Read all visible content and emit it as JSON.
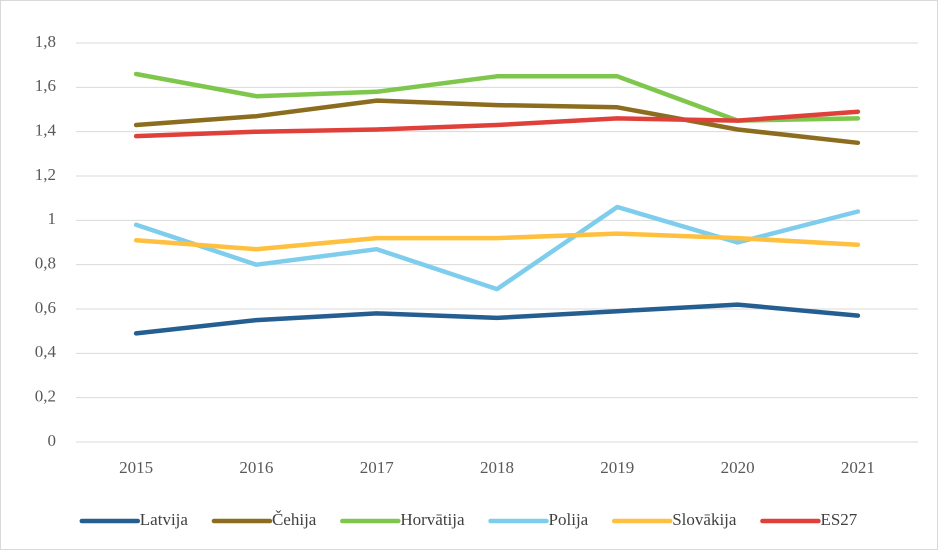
{
  "chart_data": {
    "type": "line",
    "categories": [
      "2015",
      "2016",
      "2017",
      "2018",
      "2019",
      "2020",
      "2021"
    ],
    "series": [
      {
        "name": "Latvija",
        "color": "#255e91",
        "values": [
          0.49,
          0.55,
          0.58,
          0.56,
          0.59,
          0.62,
          0.57
        ]
      },
      {
        "name": "Čehija",
        "color": "#8c6d1f",
        "values": [
          1.43,
          1.47,
          1.54,
          1.52,
          1.51,
          1.41,
          1.35
        ]
      },
      {
        "name": "Horvātija",
        "color": "#7fc74c",
        "values": [
          1.66,
          1.56,
          1.58,
          1.65,
          1.65,
          1.45,
          1.46
        ]
      },
      {
        "name": "Polija",
        "color": "#7fcdec",
        "values": [
          0.98,
          0.8,
          0.87,
          0.69,
          1.06,
          0.9,
          1.04
        ]
      },
      {
        "name": "Slovākija",
        "color": "#ffc03f",
        "values": [
          0.91,
          0.87,
          0.92,
          0.92,
          0.94,
          0.92,
          0.89
        ]
      },
      {
        "name": "ES27",
        "color": "#e0403a",
        "values": [
          1.38,
          1.4,
          1.41,
          1.43,
          1.46,
          1.45,
          1.49
        ]
      }
    ],
    "ylim": [
      0,
      1.8
    ],
    "yticks": [
      0,
      {
        "value": 0.2,
        "label": "0,2"
      },
      {
        "value": 0.4,
        "label": "0,4"
      },
      {
        "value": 0.6,
        "label": "0,6"
      },
      {
        "value": 0.8,
        "label": "0,8"
      },
      1,
      {
        "value": 1.2,
        "label": "1,2"
      },
      {
        "value": 1.4,
        "label": "1,4"
      },
      {
        "value": 1.6,
        "label": "1,6"
      },
      {
        "value": 1.8,
        "label": "1,8"
      }
    ],
    "grid": true,
    "legend": "bottom"
  }
}
